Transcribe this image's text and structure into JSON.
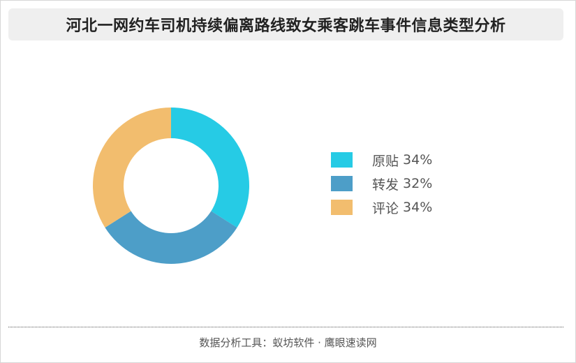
{
  "title": "河北一网约车司机持续偏离路线致女乘客跳车事件信息类型分析",
  "footer": "数据分析工具：蚁坊软件 · 鹰眼速读网",
  "chart_data": {
    "type": "pie",
    "donut": true,
    "title": "河北一网约车司机持续偏离路线致女乘客跳车事件信息类型分析",
    "categories": [
      "原贴",
      "转发",
      "评论"
    ],
    "values": [
      34,
      32,
      34
    ],
    "value_labels": [
      "34%",
      "32%",
      "34%"
    ],
    "colors": [
      "#26cbe5",
      "#4d9ec8",
      "#f2bd6e"
    ],
    "legend_position": "right"
  }
}
